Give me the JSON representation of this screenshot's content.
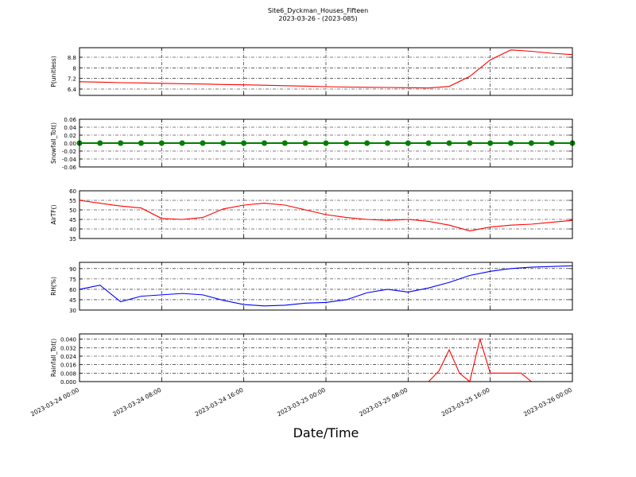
{
  "title": "Site6_Dyckman_Houses_Fifteen",
  "subtitle": "2023-03-26 - (2023-085)",
  "xlabel": "Date/Time",
  "chart_data": [
    {
      "type": "line",
      "ylabel": "P(unitless)",
      "color": "#ff0000",
      "grid": true,
      "x": [
        "2023-03-24 00:00",
        "2023-03-24 02:00",
        "2023-03-24 04:00",
        "2023-03-24 06:00",
        "2023-03-24 08:00",
        "2023-03-24 10:00",
        "2023-03-24 12:00",
        "2023-03-24 14:00",
        "2023-03-24 16:00",
        "2023-03-24 18:00",
        "2023-03-24 20:00",
        "2023-03-24 22:00",
        "2023-03-25 00:00",
        "2023-03-25 02:00",
        "2023-03-25 04:00",
        "2023-03-25 06:00",
        "2023-03-25 08:00",
        "2023-03-25 10:00",
        "2023-03-25 12:00",
        "2023-03-25 14:00",
        "2023-03-25 16:00",
        "2023-03-25 18:00",
        "2023-03-25 20:00",
        "2023-03-25 22:00",
        "2023-03-26 00:00"
      ],
      "values": [
        6.95,
        6.92,
        6.88,
        6.86,
        6.83,
        6.8,
        6.78,
        6.74,
        6.72,
        6.69,
        6.65,
        6.62,
        6.58,
        6.55,
        6.53,
        6.52,
        6.5,
        6.48,
        6.6,
        7.35,
        8.6,
        9.35,
        9.25,
        9.1,
        9.0
      ],
      "ylim": [
        5.92,
        9.52
      ],
      "yticks": [
        6.4,
        7.2,
        8.0,
        8.8
      ],
      "xlim": [
        "2023-03-24 00:00",
        "2023-03-26 00:00"
      ],
      "xticks": [
        "2023-03-24 00:00",
        "2023-03-24 08:00",
        "2023-03-24 16:00",
        "2023-03-25 00:00",
        "2023-03-25 08:00",
        "2023-03-25 16:00",
        "2023-03-26 00:00"
      ]
    },
    {
      "type": "line",
      "ylabel": "Snowfall_Tot()",
      "color": "#008000",
      "marker": "o",
      "grid": true,
      "x": [
        "2023-03-24 00:00",
        "2023-03-24 02:00",
        "2023-03-24 04:00",
        "2023-03-24 06:00",
        "2023-03-24 08:00",
        "2023-03-24 10:00",
        "2023-03-24 12:00",
        "2023-03-24 14:00",
        "2023-03-24 16:00",
        "2023-03-24 18:00",
        "2023-03-24 20:00",
        "2023-03-24 22:00",
        "2023-03-25 00:00",
        "2023-03-25 02:00",
        "2023-03-25 04:00",
        "2023-03-25 06:00",
        "2023-03-25 08:00",
        "2023-03-25 10:00",
        "2023-03-25 12:00",
        "2023-03-25 14:00",
        "2023-03-25 16:00",
        "2023-03-25 18:00",
        "2023-03-25 20:00",
        "2023-03-25 22:00",
        "2023-03-26 00:00"
      ],
      "values": [
        0,
        0,
        0,
        0,
        0,
        0,
        0,
        0,
        0,
        0,
        0,
        0,
        0,
        0,
        0,
        0,
        0,
        0,
        0,
        0,
        0,
        0,
        0,
        0,
        0
      ],
      "ylim": [
        -0.06,
        0.06
      ],
      "yticks": [
        -0.06,
        -0.04,
        -0.02,
        {
          "value": 0,
          "label": "0.00"
        },
        0.02,
        0.04,
        0.06
      ],
      "xlim": [
        "2023-03-24 00:00",
        "2023-03-26 00:00"
      ],
      "xticks": [
        "2023-03-24 00:00",
        "2023-03-24 08:00",
        "2023-03-24 16:00",
        "2023-03-25 00:00",
        "2023-03-25 08:00",
        "2023-03-25 16:00",
        "2023-03-26 00:00"
      ]
    },
    {
      "type": "line",
      "ylabel": "AirTF()",
      "color": "#ff0000",
      "grid": true,
      "x": [
        "2023-03-24 00:00",
        "2023-03-24 02:00",
        "2023-03-24 04:00",
        "2023-03-24 06:00",
        "2023-03-24 08:00",
        "2023-03-24 10:00",
        "2023-03-24 12:00",
        "2023-03-24 14:00",
        "2023-03-24 16:00",
        "2023-03-24 18:00",
        "2023-03-24 20:00",
        "2023-03-24 22:00",
        "2023-03-25 00:00",
        "2023-03-25 02:00",
        "2023-03-25 04:00",
        "2023-03-25 06:00",
        "2023-03-25 08:00",
        "2023-03-25 10:00",
        "2023-03-25 12:00",
        "2023-03-25 14:00",
        "2023-03-25 16:00",
        "2023-03-25 18:00",
        "2023-03-25 20:00",
        "2023-03-25 22:00",
        "2023-03-26 00:00"
      ],
      "values": [
        55,
        53.5,
        52,
        51,
        45.5,
        45,
        46,
        50.5,
        52.5,
        53.5,
        52.5,
        50,
        47.5,
        46,
        45,
        44.5,
        45,
        44,
        42,
        39,
        41,
        42,
        42.5,
        43.5,
        44.5
      ],
      "ylim": [
        35,
        60
      ],
      "yticks": [
        35,
        40,
        45,
        50,
        55,
        60
      ],
      "xlim": [
        "2023-03-24 00:00",
        "2023-03-26 00:00"
      ],
      "xticks": [
        "2023-03-24 00:00",
        "2023-03-24 08:00",
        "2023-03-24 16:00",
        "2023-03-25 00:00",
        "2023-03-25 08:00",
        "2023-03-25 16:00",
        "2023-03-26 00:00"
      ]
    },
    {
      "type": "line",
      "ylabel": "RH(%)",
      "color": "#0000ff",
      "grid": true,
      "x": [
        "2023-03-24 00:00",
        "2023-03-24 02:00",
        "2023-03-24 04:00",
        "2023-03-24 06:00",
        "2023-03-24 08:00",
        "2023-03-24 10:00",
        "2023-03-24 12:00",
        "2023-03-24 14:00",
        "2023-03-24 16:00",
        "2023-03-24 18:00",
        "2023-03-24 20:00",
        "2023-03-24 22:00",
        "2023-03-25 00:00",
        "2023-03-25 02:00",
        "2023-03-25 04:00",
        "2023-03-25 06:00",
        "2023-03-25 08:00",
        "2023-03-25 10:00",
        "2023-03-25 12:00",
        "2023-03-25 14:00",
        "2023-03-25 16:00",
        "2023-03-25 18:00",
        "2023-03-25 20:00",
        "2023-03-25 22:00",
        "2023-03-26 00:00"
      ],
      "values": [
        60,
        66,
        42,
        50,
        52,
        54,
        52,
        44,
        38,
        36,
        37,
        40,
        41,
        45,
        55,
        60,
        56,
        62,
        70,
        80,
        86,
        90,
        92,
        93,
        94
      ],
      "ylim": [
        30,
        99
      ],
      "yticks": [
        30,
        45,
        60,
        75,
        90
      ],
      "xlim": [
        "2023-03-24 00:00",
        "2023-03-26 00:00"
      ],
      "xticks": [
        "2023-03-24 00:00",
        "2023-03-24 08:00",
        "2023-03-24 16:00",
        "2023-03-25 00:00",
        "2023-03-25 08:00",
        "2023-03-25 16:00",
        "2023-03-26 00:00"
      ]
    },
    {
      "type": "line",
      "ylabel": "Rainfall_Tot()",
      "color": "#ff0000",
      "grid": true,
      "x": [
        "2023-03-24 00:00",
        "2023-03-24 01:00",
        "2023-03-24 02:00",
        "2023-03-24 03:00",
        "2023-03-24 04:00",
        "2023-03-24 05:00",
        "2023-03-24 06:00",
        "2023-03-24 07:00",
        "2023-03-24 08:00",
        "2023-03-24 09:00",
        "2023-03-24 10:00",
        "2023-03-24 11:00",
        "2023-03-24 12:00",
        "2023-03-24 13:00",
        "2023-03-24 14:00",
        "2023-03-24 15:00",
        "2023-03-24 16:00",
        "2023-03-24 17:00",
        "2023-03-24 18:00",
        "2023-03-24 19:00",
        "2023-03-24 20:00",
        "2023-03-24 21:00",
        "2023-03-24 22:00",
        "2023-03-24 23:00",
        "2023-03-25 00:00",
        "2023-03-25 01:00",
        "2023-03-25 02:00",
        "2023-03-25 03:00",
        "2023-03-25 04:00",
        "2023-03-25 05:00",
        "2023-03-25 06:00",
        "2023-03-25 07:00",
        "2023-03-25 08:00",
        "2023-03-25 09:00",
        "2023-03-25 10:00",
        "2023-03-25 11:00",
        "2023-03-25 12:00",
        "2023-03-25 13:00",
        "2023-03-25 14:00",
        "2023-03-25 15:00",
        "2023-03-25 16:00",
        "2023-03-25 17:00",
        "2023-03-25 18:00",
        "2023-03-25 19:00",
        "2023-03-25 20:00",
        "2023-03-25 21:00",
        "2023-03-25 22:00",
        "2023-03-25 23:00",
        "2023-03-26 00:00"
      ],
      "values": [
        0,
        0,
        0,
        0,
        0,
        0,
        0,
        0,
        0,
        0,
        0,
        0,
        0,
        0,
        0,
        0,
        0,
        0,
        0,
        0,
        0,
        0,
        0,
        0,
        0,
        0,
        0,
        0,
        0,
        0,
        0,
        0,
        0,
        0,
        0,
        0.01,
        0.03,
        0.008,
        0,
        0.04,
        0.008,
        0.008,
        0.008,
        0.008,
        0,
        0,
        0,
        0,
        0
      ],
      "ylim": [
        0,
        0.045
      ],
      "yticks": [
        {
          "value": 0,
          "label": "0.000"
        },
        0.008,
        0.016,
        0.024,
        0.032,
        {
          "value": 0.04,
          "label": "0.040"
        }
      ],
      "xlim": [
        "2023-03-24 00:00",
        "2023-03-26 00:00"
      ],
      "xticks": [
        "2023-03-24 00:00",
        "2023-03-24 08:00",
        "2023-03-24 16:00",
        "2023-03-25 00:00",
        "2023-03-25 08:00",
        "2023-03-25 16:00",
        "2023-03-26 00:00"
      ]
    }
  ]
}
